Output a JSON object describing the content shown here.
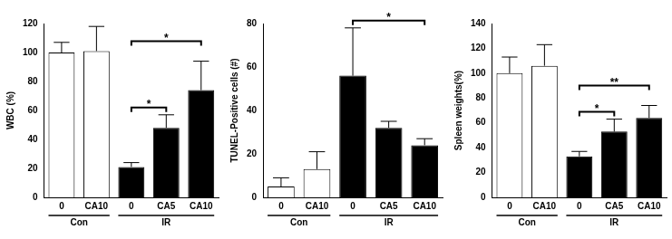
{
  "chart_data": [
    {
      "type": "bar",
      "y_label": "WBC (%)",
      "categories": [
        "0",
        "CA10",
        "0",
        "CA5",
        "CA10"
      ],
      "values": [
        100,
        101,
        21,
        48,
        74
      ],
      "errors": [
        7,
        17,
        3,
        9,
        20
      ],
      "colors": [
        "#ffffff",
        "#ffffff",
        "#000000",
        "#000000",
        "#000000"
      ],
      "groups": [
        {
          "name": "Con",
          "size": 2
        },
        {
          "name": "IR",
          "size": 3
        }
      ],
      "annotations": [
        {
          "from": 2,
          "to": 3,
          "text": "*"
        },
        {
          "from": 2,
          "to": 4,
          "text": "*"
        }
      ],
      "ylim": [
        0,
        120
      ],
      "yticks": [
        0,
        20,
        40,
        60,
        80,
        100,
        120
      ],
      "grid": false
    },
    {
      "type": "bar",
      "y_label": "TUNEL-Positive cells (#)",
      "categories": [
        "0",
        "CA10",
        "0",
        "CA5",
        "CA10"
      ],
      "values": [
        5,
        13,
        56,
        32,
        24
      ],
      "errors": [
        4,
        8,
        22,
        3,
        3
      ],
      "colors": [
        "#ffffff",
        "#ffffff",
        "#000000",
        "#000000",
        "#000000"
      ],
      "groups": [
        {
          "name": "Con",
          "size": 2
        },
        {
          "name": "IR",
          "size": 3
        }
      ],
      "annotations": [
        {
          "from": 2,
          "to": 4,
          "text": "*"
        }
      ],
      "ylim": [
        0,
        80
      ],
      "yticks": [
        0,
        20,
        40,
        60,
        80
      ],
      "grid": false
    },
    {
      "type": "bar",
      "y_label": "Spleen weights(%)",
      "categories": [
        "0",
        "CA10",
        "0",
        "CA5",
        "CA10"
      ],
      "values": [
        100,
        106,
        33,
        53,
        64
      ],
      "errors": [
        13,
        17,
        4,
        10,
        10
      ],
      "colors": [
        "#ffffff",
        "#ffffff",
        "#000000",
        "#000000",
        "#000000"
      ],
      "groups": [
        {
          "name": "Con",
          "size": 2
        },
        {
          "name": "IR",
          "size": 3
        }
      ],
      "annotations": [
        {
          "from": 2,
          "to": 3,
          "text": "*"
        },
        {
          "from": 2,
          "to": 4,
          "text": "**"
        }
      ],
      "ylim": [
        0,
        140
      ],
      "yticks": [
        0,
        20,
        40,
        60,
        80,
        100,
        120,
        140
      ],
      "grid": false
    }
  ]
}
